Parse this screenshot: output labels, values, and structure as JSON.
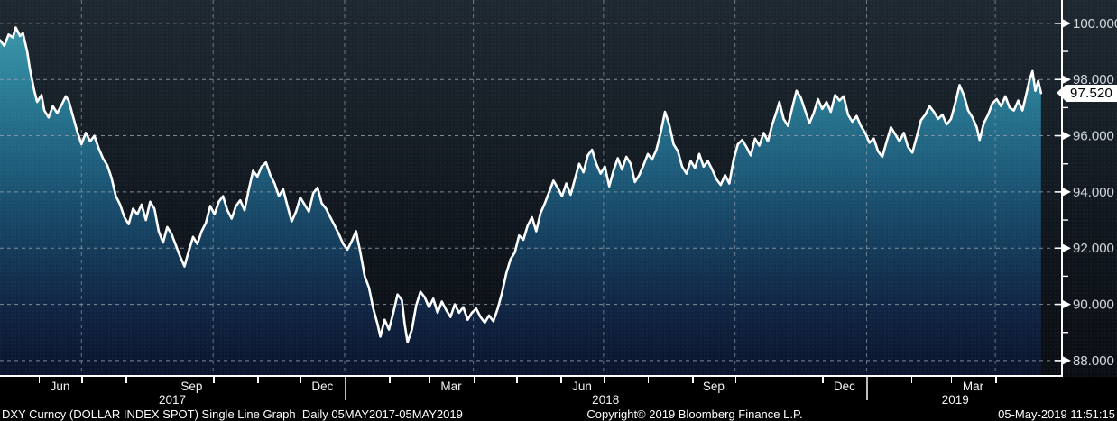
{
  "chart_data": {
    "type": "line",
    "title": "DXY Curncy (DOLLAR INDEX SPOT) Single Line Graph",
    "period": "Daily 05MAY2017-05MAY2019",
    "series_name": "DXY Dollar Index Spot",
    "last_value": "97.520",
    "last_value_num": 97.52,
    "ylim": [
      87.42,
      100.83
    ],
    "x_epoch": "2017-05-05",
    "x_span_days": 730,
    "y_major_ticks": [
      {
        "value": 100,
        "label": "100.000"
      },
      {
        "value": 98,
        "label": "98.000"
      },
      {
        "value": 96,
        "label": "96.000"
      },
      {
        "value": 94,
        "label": "94.000"
      },
      {
        "value": 92,
        "label": "92.000"
      },
      {
        "value": 90,
        "label": "90.000"
      },
      {
        "value": 88,
        "label": "88.000"
      }
    ],
    "y_minor_ticks": [
      99,
      97,
      95,
      93,
      91,
      89
    ],
    "month_tick_days": [
      27,
      57,
      88,
      119,
      149,
      180,
      210,
      241,
      272,
      300,
      331,
      361,
      392,
      422,
      453,
      484,
      514,
      545,
      575,
      606,
      637,
      665,
      696,
      726
    ],
    "quarter_grid_days": [
      57,
      149,
      241,
      331,
      422,
      514,
      606,
      696
    ],
    "year_boundary_days": [
      241,
      606
    ],
    "month_labels": [
      {
        "day": 42,
        "label": "Jun"
      },
      {
        "day": 134,
        "label": "Sep"
      },
      {
        "day": 225.5,
        "label": "Dec"
      },
      {
        "day": 315.5,
        "label": "Mar"
      },
      {
        "day": 407,
        "label": "Jun"
      },
      {
        "day": 499,
        "label": "Sep"
      },
      {
        "day": 590.5,
        "label": "Dec"
      },
      {
        "day": 680.5,
        "label": "Mar"
      }
    ],
    "year_labels": [
      {
        "day": 120.5,
        "label": "2017"
      },
      {
        "day": 423.5,
        "label": "2018"
      },
      {
        "day": 668,
        "label": "2019"
      }
    ],
    "points": [
      [
        0,
        99.4
      ],
      [
        3,
        99.2
      ],
      [
        6,
        99.6
      ],
      [
        9,
        99.5
      ],
      [
        11,
        99.85
      ],
      [
        14,
        99.55
      ],
      [
        16,
        99.65
      ],
      [
        19,
        99.0
      ],
      [
        21,
        98.35
      ],
      [
        24,
        97.6
      ],
      [
        26,
        97.2
      ],
      [
        29,
        97.45
      ],
      [
        31,
        96.9
      ],
      [
        34,
        96.65
      ],
      [
        37,
        97.05
      ],
      [
        40,
        96.8
      ],
      [
        43,
        97.1
      ],
      [
        46,
        97.4
      ],
      [
        48,
        97.25
      ],
      [
        51,
        96.7
      ],
      [
        54,
        96.15
      ],
      [
        57,
        95.7
      ],
      [
        60,
        96.1
      ],
      [
        63,
        95.8
      ],
      [
        66,
        96.0
      ],
      [
        69,
        95.55
      ],
      [
        72,
        95.2
      ],
      [
        75,
        94.95
      ],
      [
        78,
        94.5
      ],
      [
        81,
        93.85
      ],
      [
        84,
        93.55
      ],
      [
        87,
        93.1
      ],
      [
        90,
        92.85
      ],
      [
        93,
        93.4
      ],
      [
        96,
        93.2
      ],
      [
        99,
        93.55
      ],
      [
        102,
        93.0
      ],
      [
        105,
        93.65
      ],
      [
        108,
        93.4
      ],
      [
        111,
        92.6
      ],
      [
        114,
        92.2
      ],
      [
        117,
        92.75
      ],
      [
        120,
        92.5
      ],
      [
        123,
        92.1
      ],
      [
        126,
        91.7
      ],
      [
        129,
        91.35
      ],
      [
        132,
        91.9
      ],
      [
        135,
        92.4
      ],
      [
        138,
        92.15
      ],
      [
        141,
        92.6
      ],
      [
        144,
        92.9
      ],
      [
        147,
        93.5
      ],
      [
        150,
        93.2
      ],
      [
        153,
        93.65
      ],
      [
        156,
        93.85
      ],
      [
        159,
        93.35
      ],
      [
        162,
        93.05
      ],
      [
        165,
        93.5
      ],
      [
        168,
        93.7
      ],
      [
        171,
        93.35
      ],
      [
        174,
        94.1
      ],
      [
        177,
        94.75
      ],
      [
        180,
        94.55
      ],
      [
        183,
        94.9
      ],
      [
        186,
        95.05
      ],
      [
        189,
        94.6
      ],
      [
        192,
        94.3
      ],
      [
        195,
        93.85
      ],
      [
        198,
        94.1
      ],
      [
        201,
        93.5
      ],
      [
        204,
        92.95
      ],
      [
        207,
        93.3
      ],
      [
        210,
        93.8
      ],
      [
        213,
        93.55
      ],
      [
        216,
        93.3
      ],
      [
        219,
        93.95
      ],
      [
        222,
        94.15
      ],
      [
        225,
        93.6
      ],
      [
        228,
        93.4
      ],
      [
        231,
        93.1
      ],
      [
        234,
        92.8
      ],
      [
        237,
        92.5
      ],
      [
        240,
        92.15
      ],
      [
        243,
        91.95
      ],
      [
        246,
        92.25
      ],
      [
        249,
        92.6
      ],
      [
        252,
        91.85
      ],
      [
        255,
        91.0
      ],
      [
        258,
        90.6
      ],
      [
        261,
        89.85
      ],
      [
        264,
        89.3
      ],
      [
        266,
        88.85
      ],
      [
        269,
        89.45
      ],
      [
        272,
        89.1
      ],
      [
        275,
        89.7
      ],
      [
        278,
        90.35
      ],
      [
        281,
        90.15
      ],
      [
        283,
        89.3
      ],
      [
        285,
        88.65
      ],
      [
        288,
        89.1
      ],
      [
        291,
        89.95
      ],
      [
        294,
        90.45
      ],
      [
        297,
        90.25
      ],
      [
        300,
        89.9
      ],
      [
        303,
        90.2
      ],
      [
        306,
        89.7
      ],
      [
        309,
        90.1
      ],
      [
        312,
        89.8
      ],
      [
        315,
        89.55
      ],
      [
        318,
        90.0
      ],
      [
        321,
        89.7
      ],
      [
        324,
        89.9
      ],
      [
        327,
        89.45
      ],
      [
        330,
        89.7
      ],
      [
        333,
        89.85
      ],
      [
        336,
        89.55
      ],
      [
        339,
        89.35
      ],
      [
        342,
        89.6
      ],
      [
        345,
        89.4
      ],
      [
        348,
        89.85
      ],
      [
        351,
        90.4
      ],
      [
        354,
        91.1
      ],
      [
        357,
        91.6
      ],
      [
        360,
        91.85
      ],
      [
        363,
        92.45
      ],
      [
        366,
        92.3
      ],
      [
        369,
        92.8
      ],
      [
        372,
        93.1
      ],
      [
        375,
        92.6
      ],
      [
        378,
        93.25
      ],
      [
        381,
        93.6
      ],
      [
        384,
        94.0
      ],
      [
        387,
        94.4
      ],
      [
        390,
        94.15
      ],
      [
        393,
        93.85
      ],
      [
        396,
        94.3
      ],
      [
        399,
        93.9
      ],
      [
        402,
        94.45
      ],
      [
        405,
        95.0
      ],
      [
        408,
        94.7
      ],
      [
        411,
        95.3
      ],
      [
        414,
        95.5
      ],
      [
        417,
        95.0
      ],
      [
        420,
        94.65
      ],
      [
        423,
        94.9
      ],
      [
        426,
        94.2
      ],
      [
        429,
        94.75
      ],
      [
        432,
        95.2
      ],
      [
        435,
        94.8
      ],
      [
        438,
        95.25
      ],
      [
        441,
        95.0
      ],
      [
        444,
        94.35
      ],
      [
        447,
        94.6
      ],
      [
        450,
        94.95
      ],
      [
        453,
        95.35
      ],
      [
        456,
        95.15
      ],
      [
        459,
        95.5
      ],
      [
        462,
        96.1
      ],
      [
        465,
        96.85
      ],
      [
        468,
        96.4
      ],
      [
        471,
        95.7
      ],
      [
        474,
        95.45
      ],
      [
        477,
        94.9
      ],
      [
        480,
        94.65
      ],
      [
        483,
        95.1
      ],
      [
        486,
        94.85
      ],
      [
        489,
        95.35
      ],
      [
        492,
        94.9
      ],
      [
        495,
        95.1
      ],
      [
        498,
        94.8
      ],
      [
        501,
        94.45
      ],
      [
        504,
        94.25
      ],
      [
        507,
        94.6
      ],
      [
        510,
        94.3
      ],
      [
        513,
        95.15
      ],
      [
        516,
        95.7
      ],
      [
        519,
        95.85
      ],
      [
        522,
        95.6
      ],
      [
        525,
        95.3
      ],
      [
        528,
        95.9
      ],
      [
        531,
        95.65
      ],
      [
        534,
        96.1
      ],
      [
        537,
        95.8
      ],
      [
        540,
        96.4
      ],
      [
        543,
        96.85
      ],
      [
        545,
        97.2
      ],
      [
        548,
        96.6
      ],
      [
        551,
        96.35
      ],
      [
        554,
        97.0
      ],
      [
        557,
        97.6
      ],
      [
        560,
        97.35
      ],
      [
        563,
        96.9
      ],
      [
        566,
        96.45
      ],
      [
        569,
        96.8
      ],
      [
        572,
        97.3
      ],
      [
        575,
        96.95
      ],
      [
        578,
        97.2
      ],
      [
        581,
        96.85
      ],
      [
        584,
        97.45
      ],
      [
        587,
        97.25
      ],
      [
        590,
        97.4
      ],
      [
        593,
        96.75
      ],
      [
        596,
        96.5
      ],
      [
        599,
        96.7
      ],
      [
        602,
        96.35
      ],
      [
        605,
        96.1
      ],
      [
        608,
        95.75
      ],
      [
        611,
        95.9
      ],
      [
        614,
        95.45
      ],
      [
        617,
        95.25
      ],
      [
        620,
        95.8
      ],
      [
        623,
        96.3
      ],
      [
        626,
        96.05
      ],
      [
        629,
        95.8
      ],
      [
        632,
        96.1
      ],
      [
        635,
        95.6
      ],
      [
        638,
        95.4
      ],
      [
        641,
        95.95
      ],
      [
        644,
        96.55
      ],
      [
        647,
        96.75
      ],
      [
        650,
        97.05
      ],
      [
        653,
        96.85
      ],
      [
        656,
        96.6
      ],
      [
        659,
        96.75
      ],
      [
        662,
        96.4
      ],
      [
        665,
        96.6
      ],
      [
        668,
        97.15
      ],
      [
        671,
        97.8
      ],
      [
        674,
        97.45
      ],
      [
        677,
        96.9
      ],
      [
        680,
        96.65
      ],
      [
        683,
        96.3
      ],
      [
        685,
        95.85
      ],
      [
        688,
        96.45
      ],
      [
        691,
        96.75
      ],
      [
        694,
        97.15
      ],
      [
        697,
        97.3
      ],
      [
        700,
        97.05
      ],
      [
        703,
        97.4
      ],
      [
        706,
        97.0
      ],
      [
        709,
        96.9
      ],
      [
        712,
        97.25
      ],
      [
        715,
        96.9
      ],
      [
        718,
        97.55
      ],
      [
        720,
        98.0
      ],
      [
        722,
        98.3
      ],
      [
        724,
        97.6
      ],
      [
        726,
        97.95
      ],
      [
        728,
        97.52
      ]
    ]
  },
  "colors": {
    "line": "#ffffff",
    "fill_top": "#3c95aa",
    "fill_mid": "#1d5a79",
    "fill_bottom": "#0a132b",
    "background_top": "#1e2831",
    "background_bottom": "#0a0e13",
    "grid": "#9aa3ab",
    "axis": "#ffffff",
    "badge_bg": "#ffffff",
    "badge_text": "#000000",
    "footer_bg": "#000000",
    "footer_text": "#ffffff"
  },
  "footer": {
    "left": "DXY Curncy (DOLLAR INDEX SPOT) Single Line Graph  Daily 05MAY2017-05MAY2019",
    "center": "Copyright© 2019 Bloomberg Finance L.P.",
    "right": "05-May-2019 11:51:15"
  }
}
